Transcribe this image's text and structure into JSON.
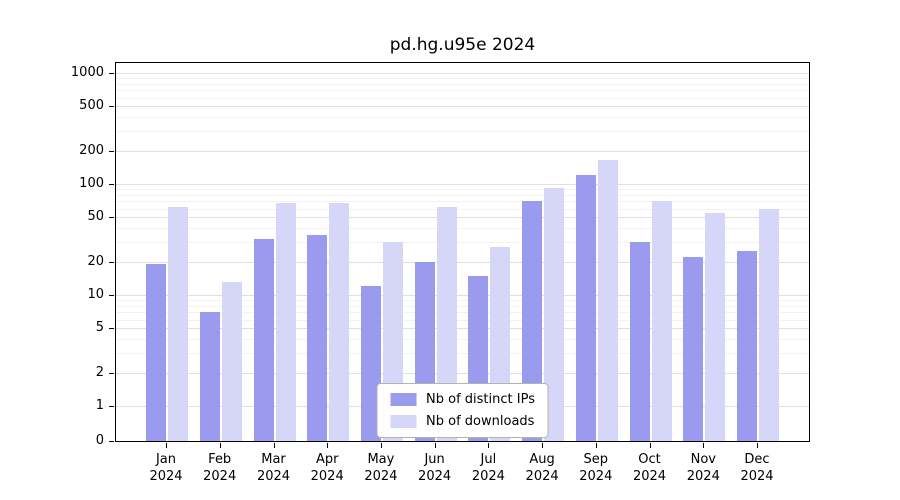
{
  "title": "pd.hg.u95e 2024",
  "colors": {
    "ips": "#9a9bef",
    "downloads": "#d6d7f8",
    "grid_major": "#e0e0e0",
    "grid_minor": "#f2f2f2",
    "axis": "#000000",
    "legend_border": "#b3b3b3"
  },
  "legend": {
    "ips_label": "Nb of distinct IPs",
    "downloads_label": "Nb of downloads"
  },
  "chart_data": {
    "type": "bar",
    "title": "pd.hg.u95e 2024",
    "categories": [
      "Jan 2024",
      "Feb 2024",
      "Mar 2024",
      "Apr 2024",
      "May 2024",
      "Jun 2024",
      "Jul 2024",
      "Aug 2024",
      "Sep 2024",
      "Oct 2024",
      "Nov 2024",
      "Dec 2024"
    ],
    "series": [
      {
        "name": "Nb of distinct IPs",
        "values": [
          19,
          7,
          32,
          35,
          12,
          20,
          15,
          70,
          120,
          30,
          22,
          25
        ]
      },
      {
        "name": "Nb of downloads",
        "values": [
          62,
          13,
          68,
          68,
          30,
          62,
          27,
          92,
          165,
          70,
          55,
          60
        ]
      }
    ],
    "yscale": "symlog",
    "yticks": [
      0,
      1,
      2,
      5,
      10,
      20,
      50,
      100,
      200,
      500,
      1000
    ],
    "ylim": [
      0,
      1000
    ],
    "grid": true,
    "legend_position": "lower center"
  }
}
